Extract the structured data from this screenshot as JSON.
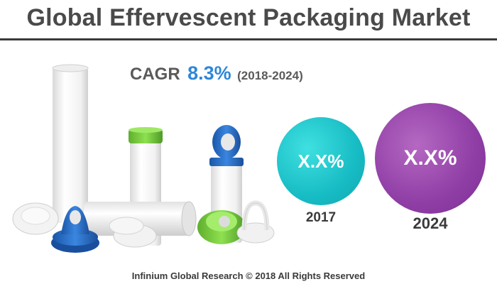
{
  "header": {
    "title": "Global Effervescent Packaging Market"
  },
  "cagr": {
    "label": "CAGR",
    "value": "8.3%",
    "period": "(2018-2024)"
  },
  "bubbles": [
    {
      "value": "X.X%",
      "year": "2017",
      "color": "#17bcc4"
    },
    {
      "value": "X.X%",
      "year": "2024",
      "color": "#8f3ea5"
    }
  ],
  "footer": {
    "copyright": "Infinium Global Research © 2018 All Rights Reserved"
  },
  "colors": {
    "accent": "#2f87d8",
    "title_text": "#4a4a4a"
  }
}
